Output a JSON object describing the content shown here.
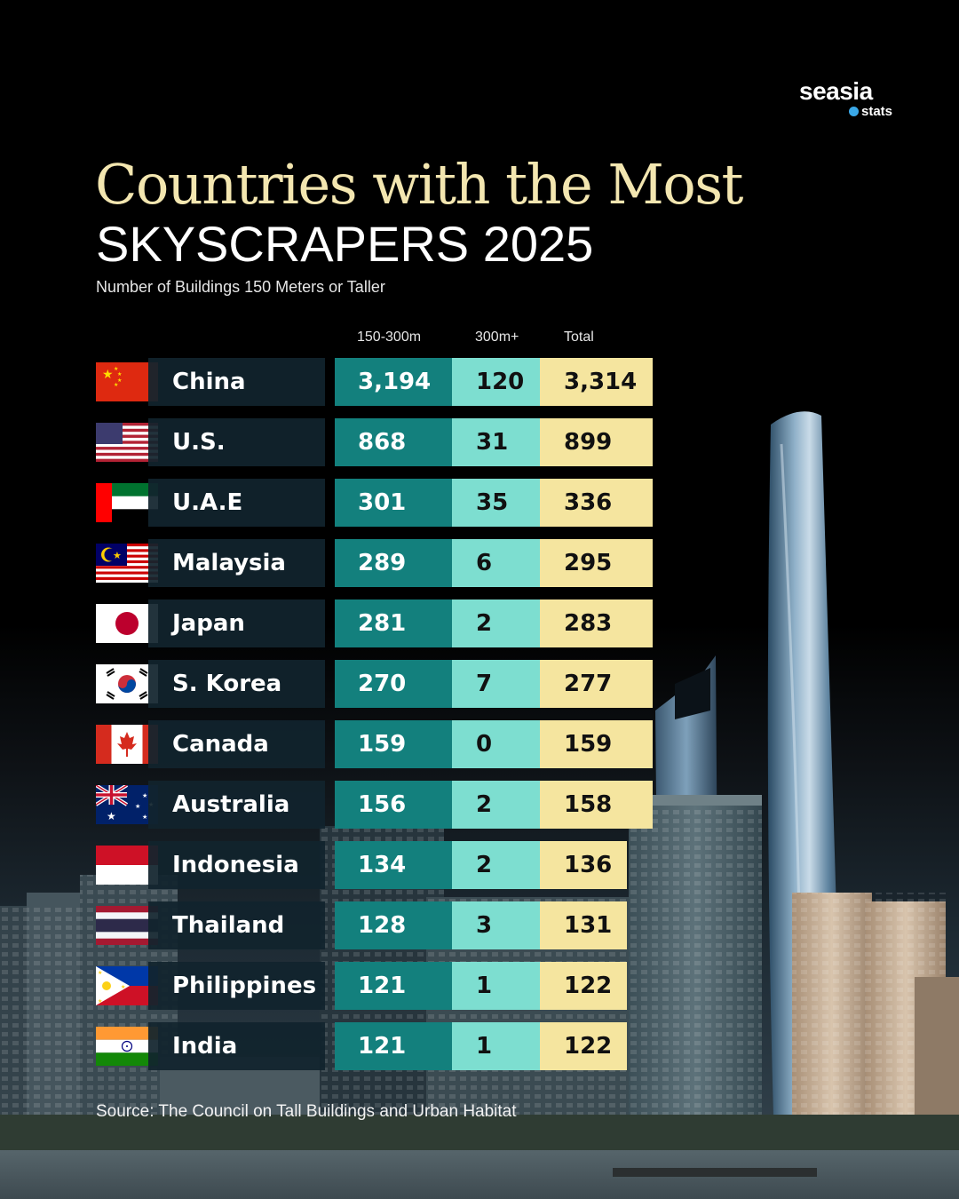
{
  "brand": {
    "name": "seasia",
    "sub": "stats"
  },
  "title_line1": "Countries with the Most",
  "title_line2": "SKYSCRAPERS 2025",
  "subtitle": "Number of Buildings 150 Meters or Taller",
  "source": "Source: The Council on Tall Buildings and Urban Habitat",
  "colors": {
    "title_gold": "#f3e6b0",
    "name_cell": "#11232d",
    "col_150_300": "#13807d",
    "col_300plus": "#7dded0",
    "col_total": "#f5e59f"
  },
  "chart_data": {
    "type": "table",
    "columns": [
      "150-300m",
      "300m+",
      "Total"
    ],
    "rows": [
      {
        "country": "China",
        "flag": "china-flag",
        "m150_300": "3,194",
        "m300plus": "120",
        "total": "3,314"
      },
      {
        "country": "U.S.",
        "flag": "us-flag",
        "m150_300": "868",
        "m300plus": "31",
        "total": "899"
      },
      {
        "country": "U.A.E",
        "flag": "uae-flag",
        "m150_300": "301",
        "m300plus": "35",
        "total": "336"
      },
      {
        "country": "Malaysia",
        "flag": "malaysia-flag",
        "m150_300": "289",
        "m300plus": "6",
        "total": "295"
      },
      {
        "country": "Japan",
        "flag": "japan-flag",
        "m150_300": "281",
        "m300plus": "2",
        "total": "283"
      },
      {
        "country": "S. Korea",
        "flag": "south-korea-flag",
        "m150_300": "270",
        "m300plus": "7",
        "total": "277"
      },
      {
        "country": "Canada",
        "flag": "canada-flag",
        "m150_300": "159",
        "m300plus": "0",
        "total": "159"
      },
      {
        "country": "Australia",
        "flag": "australia-flag",
        "m150_300": "156",
        "m300plus": "2",
        "total": "158"
      },
      {
        "country": "Indonesia",
        "flag": "indonesia-flag",
        "m150_300": "134",
        "m300plus": "2",
        "total": "136"
      },
      {
        "country": "Thailand",
        "flag": "thailand-flag",
        "m150_300": "128",
        "m300plus": "3",
        "total": "131"
      },
      {
        "country": "Philippines",
        "flag": "philippines-flag",
        "m150_300": "121",
        "m300plus": "1",
        "total": "122"
      },
      {
        "country": "India",
        "flag": "india-flag",
        "m150_300": "121",
        "m300plus": "1",
        "total": "122"
      }
    ]
  }
}
